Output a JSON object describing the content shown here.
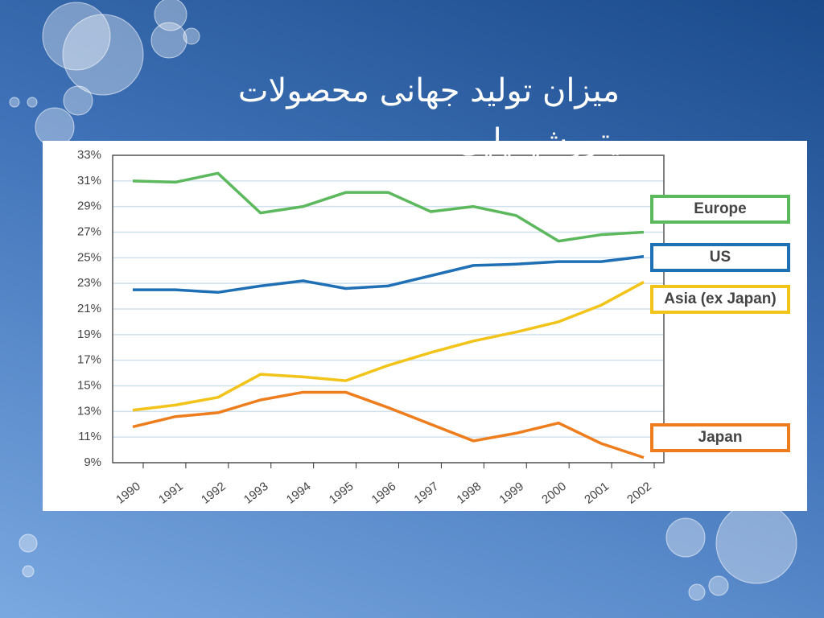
{
  "chart_data": {
    "type": "line",
    "title": "میزان تولید جهانی محصولات پتروشیمیایی",
    "categories": [
      "1990",
      "1991",
      "1992",
      "1993",
      "1994",
      "1995",
      "1996",
      "1997",
      "1998",
      "1999",
      "2000",
      "2001",
      "2002"
    ],
    "series": [
      {
        "name": "Europe",
        "color": "#5cb85c",
        "values": [
          31.0,
          30.9,
          31.6,
          28.5,
          29.0,
          30.1,
          30.1,
          28.6,
          29.0,
          28.3,
          26.3,
          26.8,
          27.0
        ]
      },
      {
        "name": "US",
        "color": "#1f6fb5",
        "values": [
          22.5,
          22.5,
          22.3,
          22.8,
          23.2,
          22.6,
          22.8,
          23.6,
          24.4,
          24.5,
          24.7,
          24.7,
          25.1
        ]
      },
      {
        "name": "Asia (ex Japan)",
        "color": "#f2c318",
        "values": [
          13.1,
          13.5,
          14.1,
          15.9,
          15.7,
          15.4,
          16.6,
          17.6,
          18.5,
          19.2,
          20.0,
          21.3,
          23.1
        ]
      },
      {
        "name": "Japan",
        "color": "#ee7d1e",
        "values": [
          11.8,
          12.6,
          12.9,
          13.9,
          14.5,
          14.5,
          13.3,
          12.0,
          10.7,
          11.3,
          12.1,
          10.5,
          9.4
        ]
      }
    ],
    "ylim": [
      9,
      33
    ],
    "yticks": [
      {
        "value": 9,
        "label": "9%"
      },
      {
        "value": 11,
        "label": "11%"
      },
      {
        "value": 13,
        "label": "13%"
      },
      {
        "value": 15,
        "label": "15%"
      },
      {
        "value": 17,
        "label": "17%"
      },
      {
        "value": 19,
        "label": "19%"
      },
      {
        "value": 21,
        "label": "21%"
      },
      {
        "value": 23,
        "label": "23%"
      },
      {
        "value": 25,
        "label": "25%"
      },
      {
        "value": 27,
        "label": "27%"
      },
      {
        "value": 29,
        "label": "29%"
      },
      {
        "value": 31,
        "label": "31%"
      },
      {
        "value": 33,
        "label": "33%"
      }
    ],
    "grid": true
  }
}
